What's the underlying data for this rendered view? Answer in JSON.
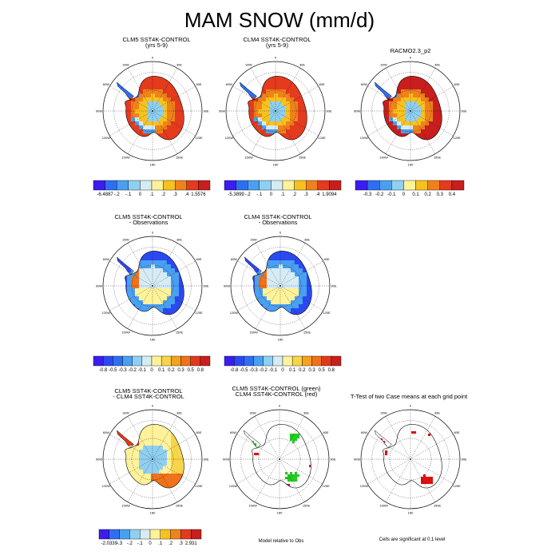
{
  "title": "MAM SNOW (mm/d)",
  "panels": [
    {
      "id": "p1",
      "title_lines": [
        "CLM5 SST4K-CONTROL",
        "(yrs 5-9)"
      ],
      "kind": "warm"
    },
    {
      "id": "p2",
      "title_lines": [
        "CLM4 SST4K-CONTROL",
        "(yrs 5-9)"
      ],
      "kind": "warm"
    },
    {
      "id": "p3",
      "title_lines": [
        "RACMO2.3_p2"
      ],
      "kind": "obs"
    },
    {
      "id": "p4",
      "title_lines": [
        "CLM5 SST4K-CONTROL",
        "- Observations"
      ],
      "kind": "cool"
    },
    {
      "id": "p5",
      "title_lines": [
        "CLM4 SST4K-CONTROL",
        "- Observations"
      ],
      "kind": "cool"
    },
    {
      "id": "p7",
      "title_lines": [
        "CLM5 SST4K-CONTROL",
        "- CLM4 SST4K-CONTROL"
      ],
      "kind": "diff"
    },
    {
      "id": "p8",
      "title_lines": [
        "CLM5 SST4K-CONTROL (green)",
        "CLM4 SST4K-CONTROL (red)"
      ],
      "kind": "sig2"
    },
    {
      "id": "p9",
      "title_lines": [
        "T-Test of two Case means at each grid point"
      ],
      "kind": "sig1"
    }
  ],
  "longitude_labels": [
    "0",
    "30E",
    "60E",
    "90E",
    "120E",
    "150E",
    "180",
    "150W",
    "120W",
    "90W",
    "60W",
    "30W"
  ],
  "colorbars": [
    {
      "id": "cb1",
      "labels": [
        "-6.4887",
        "-.2",
        "-.1",
        "0",
        ".1",
        ".2",
        ".3",
        ".4",
        "1.5576"
      ]
    },
    {
      "id": "cb2",
      "labels": [
        "-5.3899",
        "-.2",
        "-.1",
        "0",
        ".1",
        ".2",
        ".3",
        ".4",
        "1.9094"
      ]
    },
    {
      "id": "cb3",
      "labels": [
        "-0.3",
        "-0.2",
        "-0.1",
        "0",
        "0.1",
        "0.2",
        "0.3",
        "0.4"
      ]
    },
    {
      "id": "cb4",
      "labels": [
        "-0.8",
        "-0.5",
        "-0.3",
        "-0.2",
        "-0.1",
        "0",
        "0.1",
        "0.2",
        "0.3",
        "0.5",
        "0.8"
      ]
    },
    {
      "id": "cb5",
      "labels": [
        "-0.8",
        "-0.5",
        "-0.3",
        "-0.2",
        "-0.1",
        "0",
        "0.1",
        "0.2",
        "0.3",
        "0.5",
        "0.8"
      ]
    },
    {
      "id": "cb7",
      "labels": [
        "-2.0339",
        "-.3",
        "-.2",
        "-.1",
        "0",
        ".1",
        ".2",
        ".3",
        "2.931"
      ]
    }
  ],
  "notes": {
    "model_relative": "Model relative to Obs",
    "significance": "Cells are significant at 0.1 level"
  },
  "palettes": {
    "abs": [
      "#3b1df0",
      "#2e6ff2",
      "#4aa0f0",
      "#8fd0f2",
      "#d6ecf5",
      "#fff29a",
      "#f7c21e",
      "#f0821a",
      "#e43a1e",
      "#c81e1e"
    ],
    "diff": [
      "#3b1df0",
      "#2b49f0",
      "#2e6ff2",
      "#4aa0f0",
      "#8fd0f2",
      "#d6ecf5",
      "#fff29a",
      "#f7d54a",
      "#f7a21e",
      "#f0721a",
      "#e03a1e",
      "#c81e1e"
    ],
    "sig_green": "#22cc22",
    "sig_red": "#dd1111"
  },
  "chart_data": {
    "type": "heatmap",
    "title": "MAM SNOW (mm/d)",
    "projection": "south polar stereographic",
    "panels": [
      {
        "title": "CLM5 SST4K-CONTROL (yrs 5-9)",
        "colorbar_min": -6.4887,
        "colorbar_max": 1.5576,
        "levels": [
          -0.2,
          -0.1,
          0,
          0.1,
          0.2,
          0.3,
          0.4
        ]
      },
      {
        "title": "CLM4 SST4K-CONTROL (yrs 5-9)",
        "colorbar_min": -5.3899,
        "colorbar_max": 1.9094,
        "levels": [
          -0.2,
          -0.1,
          0,
          0.1,
          0.2,
          0.3,
          0.4
        ]
      },
      {
        "title": "RACMO2.3_p2",
        "levels": [
          -0.3,
          -0.2,
          -0.1,
          0,
          0.1,
          0.2,
          0.3,
          0.4
        ]
      },
      {
        "title": "CLM5 SST4K-CONTROL - Observations",
        "levels": [
          -0.8,
          -0.5,
          -0.3,
          -0.2,
          -0.1,
          0,
          0.1,
          0.2,
          0.3,
          0.5,
          0.8
        ]
      },
      {
        "title": "CLM4 SST4K-CONTROL - Observations",
        "levels": [
          -0.8,
          -0.5,
          -0.3,
          -0.2,
          -0.1,
          0,
          0.1,
          0.2,
          0.3,
          0.5,
          0.8
        ]
      },
      {
        "title": "CLM5 SST4K-CONTROL - CLM4 SST4K-CONTROL",
        "colorbar_min": -2.0339,
        "colorbar_max": 2.931,
        "levels": [
          -0.3,
          -0.2,
          -0.1,
          0,
          0.1,
          0.2,
          0.3
        ]
      },
      {
        "title": "CLM5 SST4K-CONTROL (green) / CLM4 SST4K-CONTROL (red)",
        "note": "Model relative to Obs"
      },
      {
        "title": "T-Test of two Case means at each grid point",
        "note": "Cells are significant at 0.1 level"
      }
    ]
  }
}
